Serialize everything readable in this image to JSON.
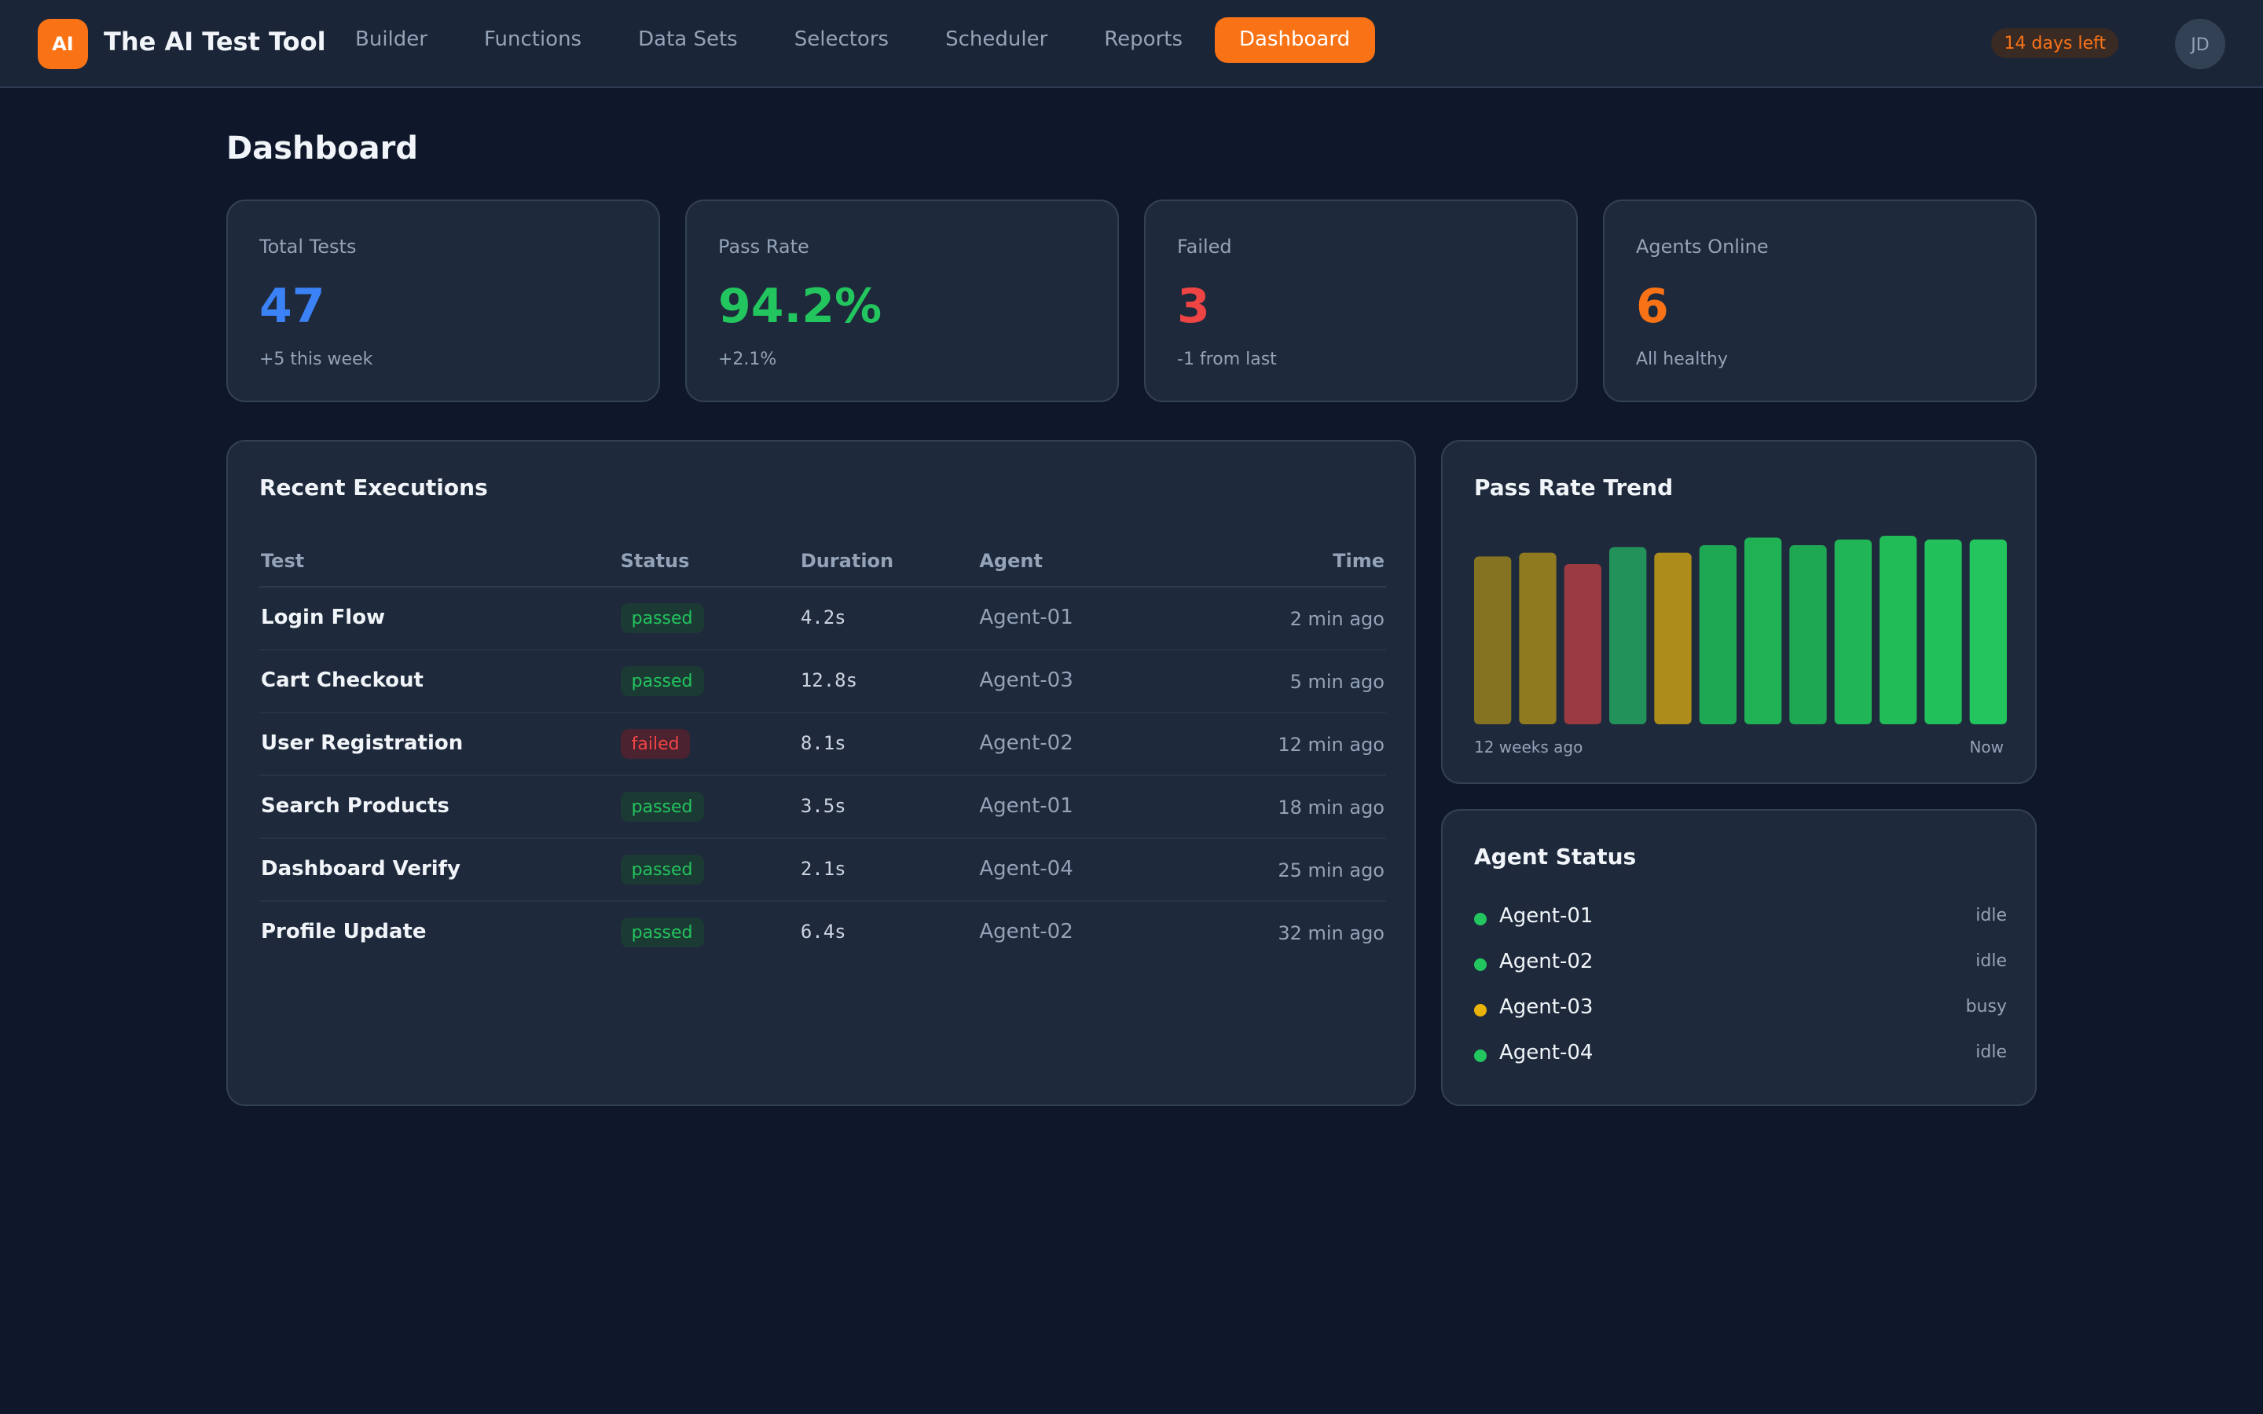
{
  "header": {
    "logo": "AI",
    "title": "The AI Test Tool",
    "nav": [
      "Builder",
      "Functions",
      "Data Sets",
      "Selectors",
      "Scheduler",
      "Reports",
      "Dashboard"
    ],
    "active": "Dashboard",
    "trial": "14 days left",
    "avatar": "JD"
  },
  "page_title": "Dashboard",
  "stats": [
    {
      "label": "Total Tests",
      "value": "47",
      "note": "+5 this week",
      "color": "#3b82f6"
    },
    {
      "label": "Pass Rate",
      "value": "94.2%",
      "note": "+2.1%",
      "color": "#22c55e"
    },
    {
      "label": "Failed",
      "value": "3",
      "note": "-1 from last",
      "color": "#ef4444"
    },
    {
      "label": "Agents Online",
      "value": "6",
      "note": "All healthy",
      "color": "#f97316"
    }
  ],
  "executions": {
    "title": "Recent Executions",
    "columns": [
      "Test",
      "Status",
      "Duration",
      "Agent",
      "Time"
    ],
    "rows": [
      [
        "Login Flow",
        "passed",
        "4.2s",
        "Agent-01",
        "2 min ago"
      ],
      [
        "Cart Checkout",
        "passed",
        "12.8s",
        "Agent-03",
        "5 min ago"
      ],
      [
        "User Registration",
        "failed",
        "8.1s",
        "Agent-02",
        "12 min ago"
      ],
      [
        "Search Products",
        "passed",
        "3.5s",
        "Agent-01",
        "18 min ago"
      ],
      [
        "Dashboard Verify",
        "passed",
        "2.1s",
        "Agent-04",
        "25 min ago"
      ],
      [
        "Profile Update",
        "passed",
        "6.4s",
        "Agent-02",
        "32 min ago"
      ]
    ]
  },
  "trend": {
    "title": "Pass Rate Trend",
    "values": [
      89,
      91,
      85,
      94,
      91,
      95,
      99,
      95,
      98,
      100,
      98,
      98
    ],
    "colors": [
      "#857322",
      "#8f7a20",
      "#9b3a40",
      "#22915a",
      "#ad8c1a",
      "#1fa854",
      "#20b155",
      "#1fa854",
      "#20b556",
      "#21bb58",
      "#22c05a",
      "#22c55e"
    ],
    "start_label": "12 weeks ago",
    "end_label": "Now"
  },
  "agents": {
    "title": "Agent Status",
    "items": [
      {
        "name": "Agent-01",
        "status": "idle"
      },
      {
        "name": "Agent-02",
        "status": "idle"
      },
      {
        "name": "Agent-03",
        "status": "busy"
      },
      {
        "name": "Agent-04",
        "status": "idle"
      }
    ]
  }
}
